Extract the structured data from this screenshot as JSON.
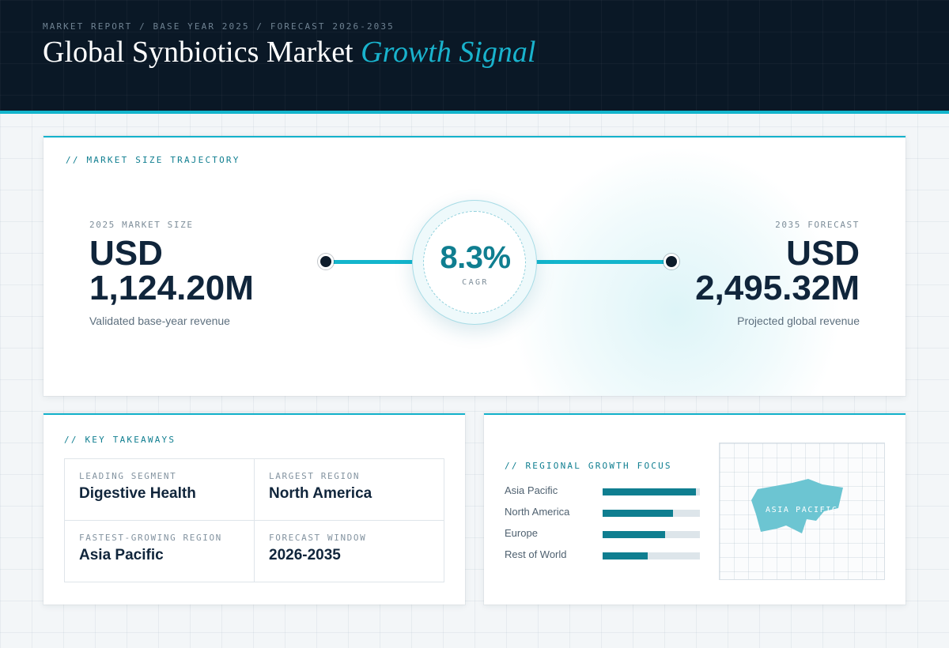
{
  "header": {
    "eyebrow": "MARKET REPORT / BASE YEAR 2025 / FORECAST 2026-2035",
    "title_main": "Global Synbiotics Market",
    "title_accent": "Growth Signal"
  },
  "trajectory": {
    "section_label": "// MARKET SIZE TRAJECTORY",
    "base": {
      "label": "2025 MARKET SIZE",
      "currency": "USD",
      "value": "1,124.20M",
      "caption": "Validated base-year revenue"
    },
    "forecast": {
      "label": "2035 FORECAST",
      "currency": "USD",
      "value": "2,495.32M",
      "caption": "Projected global revenue"
    },
    "cagr": {
      "value": "8.3%",
      "label": "CAGR"
    }
  },
  "takeaways": {
    "section_label": "// KEY TAKEAWAYS",
    "items": [
      {
        "label": "LEADING SEGMENT",
        "value": "Digestive Health"
      },
      {
        "label": "LARGEST REGION",
        "value": "North America"
      },
      {
        "label": "FASTEST-GROWING REGION",
        "value": "Asia Pacific"
      },
      {
        "label": "FORECAST WINDOW",
        "value": "2026-2035"
      }
    ]
  },
  "regional": {
    "section_label": "// REGIONAL GROWTH FOCUS",
    "items": [
      {
        "name": "Asia Pacific",
        "level": 0.96
      },
      {
        "name": "North America",
        "level": 0.72
      },
      {
        "name": "Europe",
        "level": 0.64
      },
      {
        "name": "Rest of World",
        "level": 0.46
      }
    ],
    "map_label": "ASIA PACIFIC"
  },
  "colors": {
    "accent": "#13b5cc",
    "bar_fill": "#0f7e90",
    "header_bg": "#0a1826",
    "map_region": "#6cc5d2"
  }
}
